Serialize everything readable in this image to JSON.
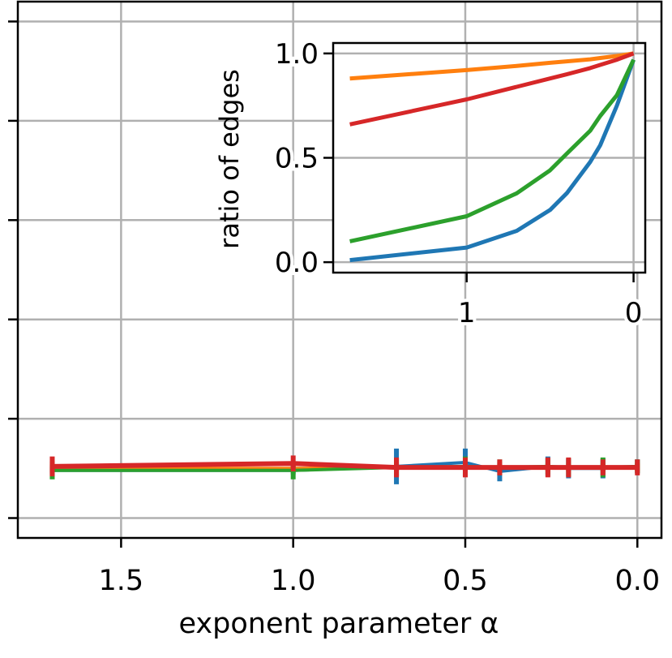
{
  "chart_data": [
    {
      "type": "line",
      "xlabel": "exponent parameter α",
      "ylabel": "",
      "xlim": [
        1.8,
        -0.07
      ],
      "x_reversed": true,
      "x_ticks": [
        1.5,
        1.0,
        0.5,
        0.0
      ],
      "x_tick_labels": [
        "1.5",
        "1.0",
        "0.5",
        "0.0"
      ],
      "y_ticks": [
        -2,
        -1,
        0,
        1,
        2,
        3
      ],
      "ylim": [
        -2.2,
        3.2
      ],
      "grid": true,
      "series": [
        {
          "color": "#1f77b4",
          "x": [
            1.7,
            1.0,
            0.7,
            0.5,
            0.4,
            0.26,
            0.2,
            0.1,
            0.0
          ],
          "y": [
            -1.52,
            -1.52,
            -1.48,
            -1.44,
            -1.53,
            -1.48,
            -1.5,
            -1.5,
            -1.48
          ],
          "err": [
            0.04,
            0.04,
            0.18,
            0.14,
            0.1,
            0.1,
            0.1,
            0.1,
            0.07
          ]
        },
        {
          "color": "#ff7f0e",
          "x": [
            1.7,
            1.0,
            0.7,
            0.5,
            0.4,
            0.26,
            0.2,
            0.1,
            0.0
          ],
          "y": [
            -1.5,
            -1.5,
            -1.49,
            -1.49,
            -1.49,
            -1.49,
            -1.49,
            -1.49,
            -1.49
          ],
          "err": [
            0.04,
            0.04,
            0.04,
            0.04,
            0.04,
            0.04,
            0.04,
            0.04,
            0.04
          ]
        },
        {
          "color": "#2ca02c",
          "x": [
            1.7,
            1.0,
            0.7,
            0.5,
            0.4,
            0.26,
            0.2,
            0.1,
            0.0
          ],
          "y": [
            -1.52,
            -1.52,
            -1.49,
            -1.48,
            -1.49,
            -1.48,
            -1.49,
            -1.49,
            -1.48
          ],
          "err": [
            0.09,
            0.09,
            0.09,
            0.1,
            0.08,
            0.08,
            0.09,
            0.1,
            0.07
          ]
        },
        {
          "color": "#d62728",
          "x": [
            1.7,
            1.0,
            0.7,
            0.5,
            0.4,
            0.26,
            0.2,
            0.1,
            0.0
          ],
          "y": [
            -1.48,
            -1.45,
            -1.49,
            -1.49,
            -1.49,
            -1.49,
            -1.49,
            -1.49,
            -1.49
          ],
          "err": [
            0.1,
            0.08,
            0.1,
            0.1,
            0.08,
            0.1,
            0.1,
            0.08,
            0.08
          ]
        }
      ]
    },
    {
      "type": "line",
      "subtype": "inset",
      "xlabel": "",
      "ylabel": "ratio of edges",
      "xlim": [
        1.8,
        -0.07
      ],
      "x_reversed": true,
      "x_ticks": [
        1,
        0
      ],
      "x_tick_labels": [
        "1",
        "0"
      ],
      "ylim": [
        -0.05,
        1.05
      ],
      "y_ticks": [
        0.0,
        0.5,
        1.0
      ],
      "y_tick_labels": [
        "0.0",
        "0.5",
        "1.0"
      ],
      "grid": true,
      "series": [
        {
          "color": "#1f77b4",
          "x": [
            1.7,
            1.0,
            0.7,
            0.5,
            0.4,
            0.26,
            0.2,
            0.1,
            0.0
          ],
          "y": [
            0.01,
            0.07,
            0.15,
            0.25,
            0.33,
            0.48,
            0.56,
            0.75,
            0.97
          ]
        },
        {
          "color": "#ff7f0e",
          "x": [
            1.7,
            1.0,
            0.7,
            0.5,
            0.4,
            0.26,
            0.2,
            0.1,
            0.0
          ],
          "y": [
            0.88,
            0.92,
            0.94,
            0.955,
            0.962,
            0.972,
            0.978,
            0.988,
            1.0
          ]
        },
        {
          "color": "#2ca02c",
          "x": [
            1.7,
            1.0,
            0.7,
            0.5,
            0.4,
            0.26,
            0.2,
            0.1,
            0.0
          ],
          "y": [
            0.1,
            0.22,
            0.33,
            0.44,
            0.52,
            0.63,
            0.7,
            0.8,
            0.97
          ]
        },
        {
          "color": "#d62728",
          "x": [
            1.7,
            1.0,
            0.7,
            0.5,
            0.4,
            0.26,
            0.2,
            0.1,
            0.0
          ],
          "y": [
            0.66,
            0.78,
            0.84,
            0.88,
            0.9,
            0.93,
            0.945,
            0.97,
            1.0
          ]
        }
      ]
    }
  ]
}
